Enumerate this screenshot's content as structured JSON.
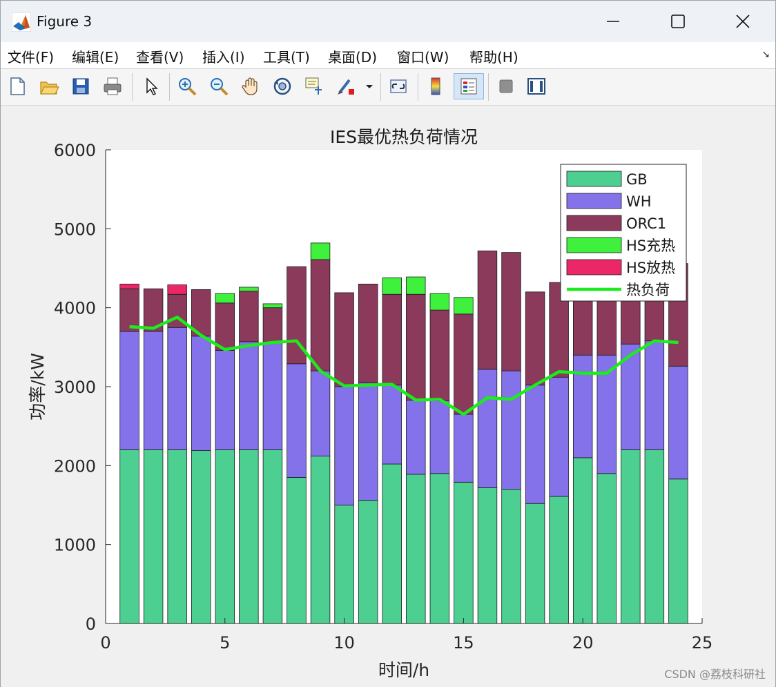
{
  "window": {
    "title": "Figure 3",
    "icons": [
      "matlab-logo-icon",
      "minimize-icon",
      "maximize-icon",
      "close-icon"
    ]
  },
  "menu": {
    "items": [
      "文件(F)",
      "编辑(E)",
      "查看(V)",
      "插入(I)",
      "工具(T)",
      "桌面(D)",
      "窗口(W)",
      "帮助(H)"
    ],
    "more_glyph": "↘"
  },
  "toolbar": {
    "buttons": [
      "new-figure",
      "open-file",
      "save",
      "print",
      "edit-plot-arrow",
      "zoom-in",
      "zoom-out",
      "pan",
      "rotate-3d",
      "data-cursor",
      "brush",
      "brush-dropdown",
      "link-plot",
      "insert-colorbar",
      "insert-legend",
      "hide-plot-tools",
      "show-plot-tools"
    ],
    "active": "insert-legend"
  },
  "chart_data": {
    "type": "bar",
    "stacked": true,
    "title": "IES最优热负荷情况",
    "xlabel": "时间/h",
    "ylabel": "功率/kW",
    "xlim": [
      0,
      25
    ],
    "ylim": [
      0,
      6000
    ],
    "xticks": [
      0,
      5,
      10,
      15,
      20,
      25
    ],
    "yticks": [
      0,
      1000,
      2000,
      3000,
      4000,
      5000,
      6000
    ],
    "grid": false,
    "legend_position": "top-right",
    "x": [
      1,
      2,
      3,
      4,
      5,
      6,
      7,
      8,
      9,
      10,
      11,
      12,
      13,
      14,
      15,
      16,
      17,
      18,
      19,
      20,
      21,
      22,
      23,
      24
    ],
    "series": [
      {
        "name": "GB",
        "color": "#4dcf91",
        "values": [
          2200,
          2200,
          2200,
          2190,
          2200,
          2200,
          2200,
          1850,
          2120,
          1500,
          1560,
          2020,
          1890,
          1900,
          1790,
          1720,
          1700,
          1520,
          1610,
          2100,
          1900,
          2200,
          2200,
          1830
        ]
      },
      {
        "name": "WH",
        "color": "#8472ea",
        "values": [
          1500,
          1500,
          1550,
          1450,
          1260,
          1370,
          1360,
          1440,
          1080,
          1500,
          1490,
          1000,
          940,
          920,
          860,
          1500,
          1500,
          1500,
          1510,
          1300,
          1500,
          1340,
          1380,
          1430
        ]
      },
      {
        "name": "ORC1",
        "color": "#8b3a5c",
        "values": [
          540,
          540,
          420,
          590,
          600,
          640,
          440,
          1230,
          1410,
          1190,
          1250,
          1150,
          1340,
          1150,
          1270,
          1500,
          1500,
          1180,
          1200,
          1200,
          1300,
          1300,
          1200,
          1300
        ]
      },
      {
        "name": "HS充热",
        "color": "#3ff03d",
        "values": [
          0,
          0,
          0,
          0,
          120,
          50,
          50,
          0,
          210,
          0,
          0,
          210,
          220,
          210,
          210,
          0,
          0,
          0,
          0,
          200,
          0,
          160,
          60,
          0
        ]
      },
      {
        "name": "HS放热",
        "color": "#ec2768",
        "values": [
          60,
          0,
          120,
          0,
          0,
          0,
          0,
          0,
          0,
          0,
          0,
          0,
          0,
          0,
          0,
          0,
          0,
          0,
          0,
          0,
          0,
          0,
          0,
          0
        ]
      }
    ],
    "line": {
      "name": "热负荷",
      "color": "#1bec1b",
      "values": [
        3760,
        3740,
        3880,
        3650,
        3470,
        3520,
        3560,
        3580,
        3200,
        3010,
        3020,
        3030,
        2830,
        2840,
        2650,
        2860,
        2840,
        3020,
        3190,
        3170,
        3170,
        3400,
        3580,
        3560
      ]
    }
  },
  "watermark": "CSDN @荔枝科研社"
}
